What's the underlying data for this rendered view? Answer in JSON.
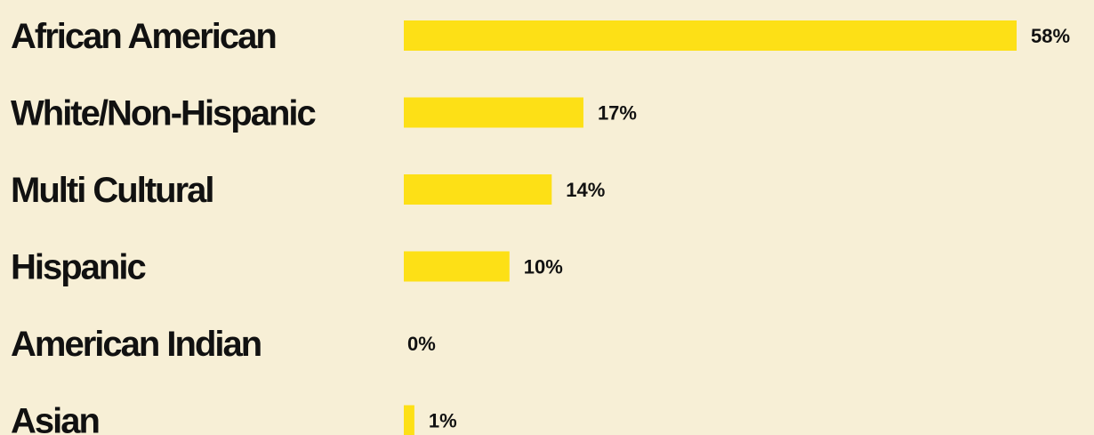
{
  "chart_data": {
    "type": "bar",
    "orientation": "horizontal",
    "categories": [
      "African American",
      "White/Non-Hispanic",
      "Multi Cultural",
      "Hispanic",
      "American Indian",
      "Asian"
    ],
    "values": [
      58,
      17,
      14,
      10,
      0,
      1
    ],
    "value_labels": [
      "58%",
      "17%",
      "14%",
      "10%",
      "0%",
      "1%"
    ],
    "unit": "%",
    "xlim": [
      0,
      58
    ],
    "grid": false,
    "legend": "none",
    "colors": {
      "bar": "#fde016",
      "background": "#f7efd6",
      "text": "#111111"
    }
  }
}
